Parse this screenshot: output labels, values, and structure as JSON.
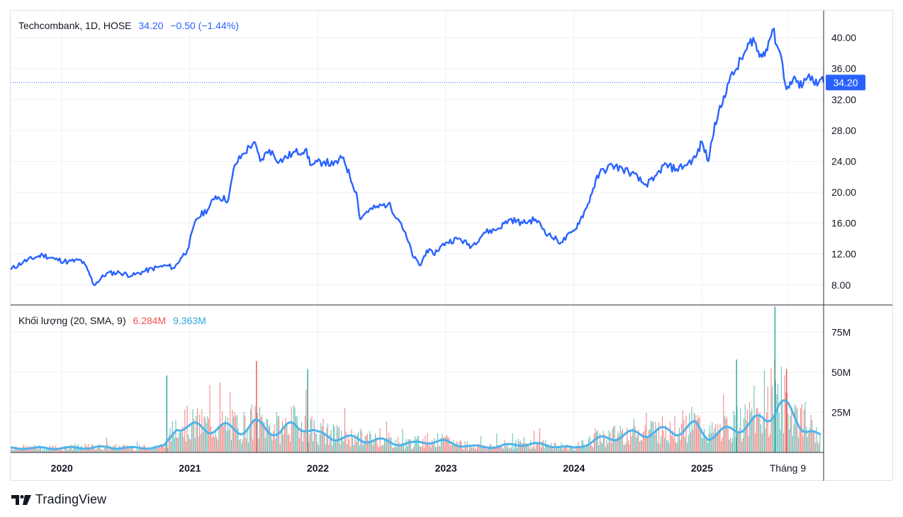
{
  "price_legend": {
    "symbol": "Techcombank, 1D, HOSE",
    "last": "34.20",
    "change": "−0.50 (−1.44%)"
  },
  "volume_legend": {
    "title": "Khối lượng (20, SMA, 9)",
    "volume": "6.284M",
    "sma": "9.363M"
  },
  "branding": {
    "name": "TradingView",
    "logo_icon": "tradingview-logo-icon"
  },
  "colors": {
    "price_line": "#2962ff",
    "volume_up": "#26a69a",
    "volume_down": "#ef5350",
    "volume_sma": "#4fb3ea",
    "grid": "#eef0f4"
  },
  "chart_data": [
    {
      "type": "line",
      "name": "Techcombank, 1D, HOSE",
      "x_ticks": [
        "2020",
        "2021",
        "2022",
        "2023",
        "2024",
        "2025",
        "Tháng 9"
      ],
      "y_ticks": [
        "8.00",
        "12.00",
        "16.00",
        "20.00",
        "24.00",
        "28.00",
        "32.00",
        "36.00",
        "40.00"
      ],
      "ylim": [
        5.5,
        43.5
      ],
      "xlim": [
        2019.6,
        2025.95
      ],
      "last_price_label": "34.20",
      "x": [
        2019.6,
        2019.7,
        2019.8,
        2019.85,
        2019.95,
        2020.05,
        2020.15,
        2020.2,
        2020.25,
        2020.35,
        2020.45,
        2020.55,
        2020.65,
        2020.75,
        2020.82,
        2020.88,
        2020.93,
        2020.98,
        2021.05,
        2021.15,
        2021.2,
        2021.3,
        2021.35,
        2021.42,
        2021.5,
        2021.55,
        2021.62,
        2021.7,
        2021.8,
        2021.9,
        2021.95,
        2022.05,
        2022.12,
        2022.2,
        2022.25,
        2022.3,
        2022.33,
        2022.38,
        2022.45,
        2022.55,
        2022.65,
        2022.75,
        2022.8,
        2022.85,
        2022.9,
        2023.0,
        2023.1,
        2023.2,
        2023.3,
        2023.4,
        2023.5,
        2023.6,
        2023.7,
        2023.8,
        2023.9,
        2024.0,
        2024.05,
        2024.1,
        2024.15,
        2024.2,
        2024.3,
        2024.38,
        2024.45,
        2024.55,
        2024.62,
        2024.7,
        2024.8,
        2024.87,
        2024.95,
        2025.0,
        2025.05,
        2025.1,
        2025.15,
        2025.2,
        2025.27,
        2025.35,
        2025.4,
        2025.45,
        2025.5,
        2025.55,
        2025.62,
        2025.65,
        2025.68,
        2025.72,
        2025.76,
        2025.8,
        2025.86,
        2025.9,
        2025.93,
        2025.95
      ],
      "y": [
        10.0,
        11.0,
        11.6,
        11.9,
        11.3,
        11.0,
        11.2,
        10.0,
        8.0,
        9.5,
        9.6,
        9.2,
        9.8,
        10.3,
        10.5,
        10.2,
        11.5,
        12.5,
        16.5,
        18.0,
        19.5,
        19.0,
        23.5,
        25.0,
        26.5,
        24.0,
        25.5,
        24.0,
        25.0,
        25.5,
        23.5,
        24.0,
        23.5,
        24.5,
        22.0,
        20.0,
        16.5,
        17.5,
        18.0,
        18.5,
        16.0,
        11.5,
        10.5,
        12.5,
        12.0,
        13.5,
        14.0,
        13.0,
        14.8,
        15.2,
        16.5,
        16.0,
        16.5,
        14.5,
        13.5,
        15.0,
        16.5,
        18.0,
        20.5,
        22.5,
        23.5,
        23.0,
        22.5,
        21.0,
        21.5,
        23.5,
        23.0,
        23.5,
        24.5,
        26.5,
        24.0,
        29.0,
        31.0,
        34.0,
        36.0,
        38.5,
        40.0,
        37.5,
        38.5,
        41.0,
        37.5,
        34.0,
        33.5,
        35.0,
        33.5,
        34.7,
        35.0,
        33.8,
        34.7,
        34.2
      ]
    },
    {
      "type": "bar",
      "name": "Khối lượng (20, SMA, 9)",
      "y_ticks": [
        "25M",
        "50M",
        "75M"
      ],
      "ylim": [
        0,
        92
      ],
      "xlim": [
        2019.6,
        2025.95
      ],
      "sma_label": "9.363M",
      "volume_label": "6.284M",
      "x": [
        2019.6,
        2020.0,
        2020.3,
        2020.6,
        2020.8,
        2020.85,
        2020.9,
        2021.0,
        2021.2,
        2021.4,
        2021.5,
        2021.55,
        2021.7,
        2021.8,
        2021.9,
        2022.0,
        2022.2,
        2022.35,
        2022.5,
        2022.65,
        2022.75,
        2022.85,
        2023.0,
        2023.2,
        2023.4,
        2023.6,
        2023.8,
        2024.0,
        2024.2,
        2024.4,
        2024.6,
        2024.8,
        2024.95,
        2025.05,
        2025.2,
        2025.3,
        2025.4,
        2025.5,
        2025.55,
        2025.6,
        2025.7,
        2025.8,
        2025.9,
        2025.95
      ],
      "sma": [
        3,
        3,
        3.5,
        3,
        4,
        10,
        20,
        17,
        17,
        16,
        19,
        18,
        14,
        18,
        19,
        12,
        10,
        9,
        8,
        6,
        6,
        8,
        7,
        4,
        4,
        6,
        5,
        3,
        9,
        12,
        14,
        15,
        18,
        11,
        15,
        18,
        20,
        24,
        30,
        34,
        26,
        18,
        11,
        10
      ],
      "volume_peaks": [
        {
          "x": 2020.82,
          "value": 48,
          "up": true
        },
        {
          "x": 2021.52,
          "value": 57,
          "up": false
        },
        {
          "x": 2021.92,
          "value": 52,
          "up": true
        },
        {
          "x": 2025.27,
          "value": 58,
          "up": true
        },
        {
          "x": 2025.57,
          "value": 91,
          "up": true
        },
        {
          "x": 2025.66,
          "value": 52,
          "up": false
        }
      ]
    }
  ]
}
